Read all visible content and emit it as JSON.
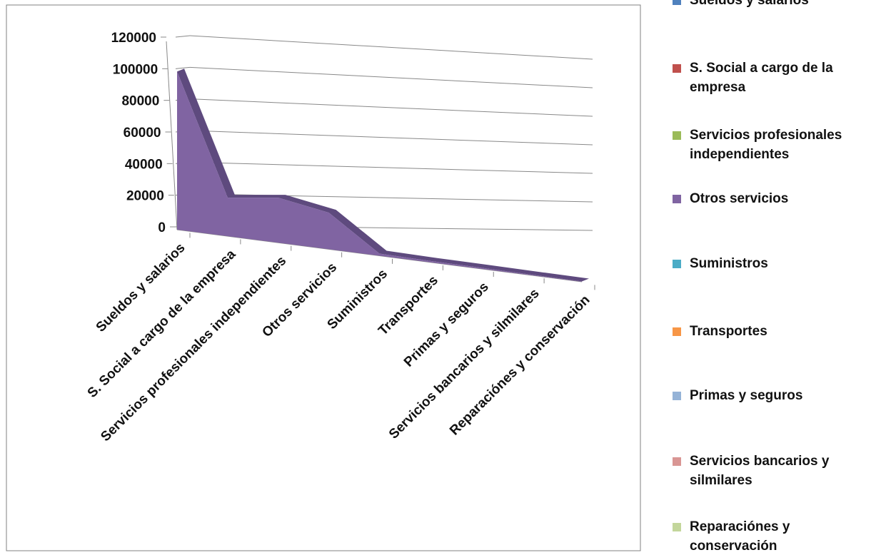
{
  "chart_data": {
    "type": "area",
    "title": "",
    "xlabel": "",
    "ylabel": "",
    "ylim": [
      0,
      120000
    ],
    "yticks": [
      0,
      20000,
      40000,
      60000,
      80000,
      100000,
      120000
    ],
    "grid": true,
    "legend_position": "right",
    "categories": [
      "Sueldos y salarios",
      "S. Social a cargo de la empresa",
      "Servicios profesionales independientes",
      "Otros servicios",
      "Suministros",
      "Transportes",
      "Primas y seguros",
      "Servicios bancarios y silmilares",
      "Reparaciónes y conservación"
    ],
    "values": [
      100000,
      25000,
      30000,
      25000,
      1500,
      1000,
      800,
      500,
      300
    ],
    "series_color": "#8064A2",
    "legend": [
      {
        "label": "Sueldos y salarios",
        "color": "#4F81BD"
      },
      {
        "label": "S. Social a cargo de la empresa",
        "color": "#C0504D"
      },
      {
        "label": "Servicios profesionales independientes",
        "color": "#9BBB59"
      },
      {
        "label": "Otros servicios",
        "color": "#8064A2"
      },
      {
        "label": "Suministros",
        "color": "#4BACC6"
      },
      {
        "label": "Transportes",
        "color": "#F79646"
      },
      {
        "label": "Primas y seguros",
        "color": "#95B3D7"
      },
      {
        "label": "Servicios bancarios y silmilares",
        "color": "#D99694"
      },
      {
        "label": "Reparaciónes y conservación",
        "color": "#C3D69B"
      }
    ]
  }
}
